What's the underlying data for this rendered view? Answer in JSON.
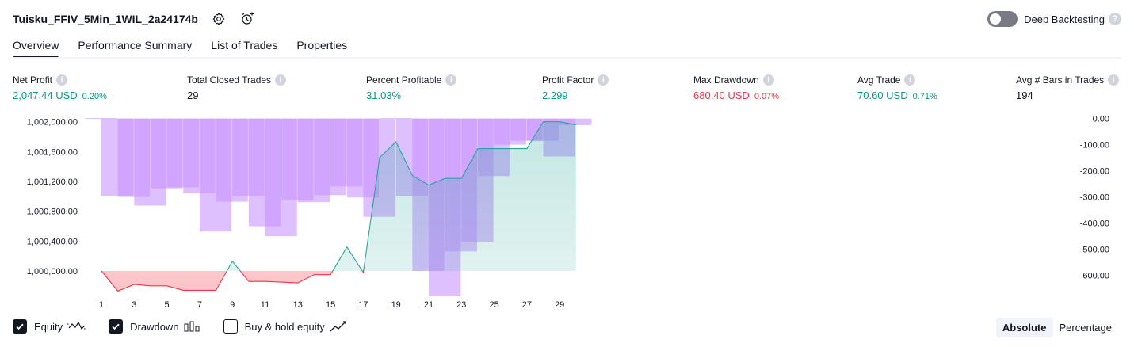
{
  "header": {
    "title": "Tuisku_FFIV_5Min_1WIL_2a24174b",
    "settings_icon": "gear-icon",
    "alert_icon": "add-alert-icon"
  },
  "deep_backtesting": {
    "label": "Deep Backtesting",
    "enabled": false,
    "help": "?"
  },
  "tabs": [
    {
      "label": "Overview",
      "active": true
    },
    {
      "label": "Performance Summary",
      "active": false
    },
    {
      "label": "List of Trades",
      "active": false
    },
    {
      "label": "Properties",
      "active": false
    }
  ],
  "metrics": {
    "net_profit": {
      "label": "Net Profit",
      "value": "2,047.44 USD",
      "pct": "0.20%"
    },
    "total_closed_trades": {
      "label": "Total Closed Trades",
      "value": "29"
    },
    "percent_profitable": {
      "label": "Percent Profitable",
      "value": "31.03%"
    },
    "profit_factor": {
      "label": "Profit Factor",
      "value": "2.299"
    },
    "max_drawdown": {
      "label": "Max Drawdown",
      "value": "680.40 USD",
      "pct": "0.07%"
    },
    "avg_trade": {
      "label": "Avg Trade",
      "value": "70.60 USD",
      "pct": "0.71%"
    },
    "avg_bars": {
      "label": "Avg # Bars in Trades",
      "value": "194"
    }
  },
  "colors": {
    "equity_positive": "#26a69a",
    "equity_negative": "#f23645",
    "drawdown_bar": "#c58cff",
    "text": "#131722"
  },
  "chart_data": {
    "type": "line",
    "x": [
      1,
      2,
      3,
      4,
      5,
      6,
      7,
      8,
      9,
      10,
      11,
      12,
      13,
      14,
      15,
      16,
      17,
      18,
      19,
      20,
      21,
      22,
      23,
      24,
      25,
      26,
      27,
      28,
      29,
      30
    ],
    "x_ticks": [
      "1",
      "3",
      "5",
      "7",
      "9",
      "11",
      "13",
      "15",
      "17",
      "19",
      "21",
      "23",
      "25",
      "27",
      "29"
    ],
    "left_axis": {
      "ticks": [
        "1,002,000.00",
        "1,001,600.00",
        "1,001,200.00",
        "1,000,800.00",
        "1,000,400.00",
        "1,000,000.00"
      ],
      "tick_values": [
        1002000,
        1001600,
        1001200,
        1000800,
        1000400,
        1000000
      ],
      "ylim": [
        999660,
        1002060
      ]
    },
    "right_axis": {
      "ticks": [
        "0.00",
        "-100.00",
        "-200.00",
        "-300.00",
        "-400.00",
        "-500.00",
        "-600.00"
      ],
      "tick_values": [
        0,
        -100,
        -200,
        -300,
        -400,
        -500,
        -600
      ],
      "ylim": [
        -680,
        5
      ]
    },
    "series": [
      {
        "name": "Equity",
        "axis": "left",
        "values": [
          1000000,
          999730,
          999820,
          999800,
          999800,
          999740,
          999740,
          999740,
          1000130,
          999860,
          999860,
          999850,
          999840,
          999950,
          999950,
          1000320,
          999980,
          1001520,
          1001730,
          1001280,
          1001150,
          1001240,
          1001240,
          1001640,
          1001640,
          1001640,
          1001640,
          1002000,
          1002000,
          1001960
        ]
      },
      {
        "name": "Drawdown",
        "axis": "right",
        "values": [
          0,
          -297,
          -300,
          -333,
          -267,
          -263,
          -285,
          -432,
          -318,
          -296,
          -412,
          -450,
          -312,
          -320,
          -293,
          -260,
          -302,
          -376,
          0,
          -296,
          -583,
          -680,
          -508,
          -471,
          -220,
          -100,
          -85,
          -85,
          -145,
          -25
        ]
      }
    ],
    "legend": [
      {
        "name": "Equity",
        "checked": true,
        "icon": "equity-line-icon"
      },
      {
        "name": "Drawdown",
        "checked": true,
        "icon": "drawdown-bars-icon"
      },
      {
        "name": "Buy & hold equity",
        "checked": false,
        "icon": "buy-hold-line-icon"
      }
    ]
  },
  "mode": {
    "absolute": "Absolute",
    "percentage": "Percentage",
    "selected": "absolute"
  }
}
